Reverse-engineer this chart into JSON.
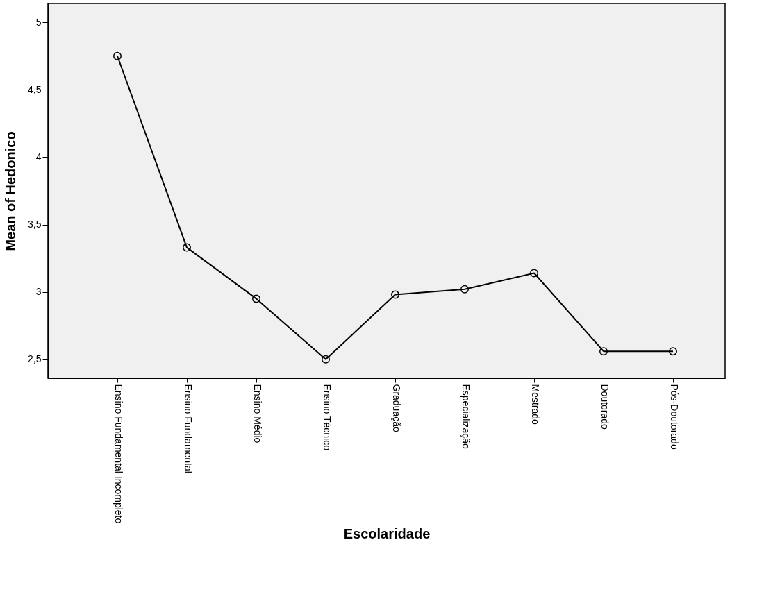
{
  "chart_data": {
    "type": "line",
    "xlabel": "Escolaridade",
    "ylabel": "Mean of Hedonico",
    "categories": [
      "Ensino Fundamental Incompleto",
      "Ensino Fundamental",
      "Ensino Médio",
      "Ensino Técnico",
      "Graduação",
      "Especialização",
      "Mestrado",
      "Doutorado",
      "Pós-Doutorado"
    ],
    "series": [
      {
        "color": "#000000",
        "values": [
          4.75,
          3.33,
          2.95,
          2.5,
          2.98,
          3.02,
          3.14,
          2.56,
          2.56
        ]
      }
    ],
    "ylim": [
      2.36,
      5.14
    ],
    "yticks": [
      {
        "value": 2.5,
        "label": "2,5"
      },
      {
        "value": 3,
        "label": "3"
      },
      {
        "value": 3.5,
        "label": "3,5"
      },
      {
        "value": 4,
        "label": "4"
      },
      {
        "value": 4.5,
        "label": "4,5"
      },
      {
        "value": 5,
        "label": "5"
      }
    ],
    "grid": false,
    "marker": "circle",
    "line_style": "solid"
  }
}
